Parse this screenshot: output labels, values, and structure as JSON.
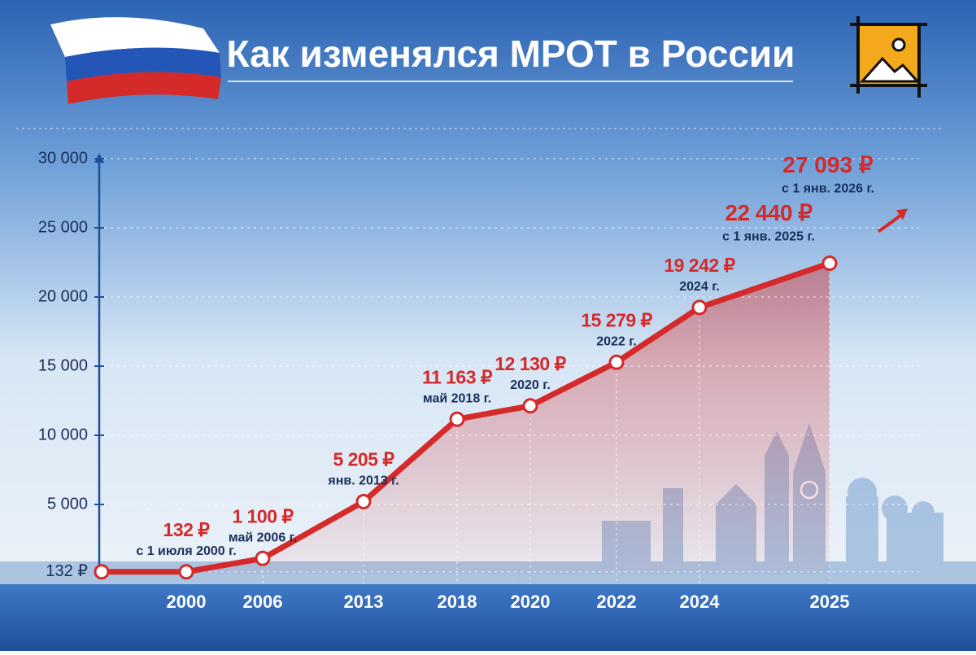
{
  "chart_data": {
    "type": "line",
    "title": "Как изменялся МРОТ в России",
    "categories": [
      null,
      "2000",
      "2006",
      "2013",
      "2018",
      "2020",
      "2022",
      "2024",
      "2025"
    ],
    "values": [
      132,
      132,
      1100,
      5205,
      11163,
      12130,
      15279,
      19242,
      22440
    ],
    "value_labels": [
      null,
      "132 ₽",
      "1 100 ₽",
      "5 205 ₽",
      "11 163 ₽",
      "12 130 ₽",
      "15 279 ₽",
      "19 242 ₽",
      "22 440 ₽"
    ],
    "point_notes": [
      null,
      "с 1 июля 2000 г.",
      "май 2006 г.",
      "янв. 2013 г.",
      "май 2018 г.",
      "2020 г.",
      "2022 г.",
      "2024 г.",
      "с 1 янв. 2025 г."
    ],
    "color": "#d42a2a",
    "ylim": [
      0,
      30000
    ],
    "yticks": [
      {
        "value": 132,
        "label": "132 ₽"
      },
      {
        "value": 5000,
        "label": "5 000"
      },
      {
        "value": 10000,
        "label": "10 000"
      },
      {
        "value": 15000,
        "label": "15 000"
      },
      {
        "value": 20000,
        "label": "20 000"
      },
      {
        "value": 25000,
        "label": "25 000"
      },
      {
        "value": 30000,
        "label": "30 000"
      }
    ],
    "grid": true,
    "annotation": {
      "value": 27093,
      "label": "27 093 ₽",
      "note": "с 1 янв. 2026 г."
    }
  }
}
